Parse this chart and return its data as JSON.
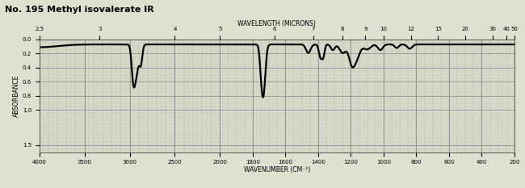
{
  "title": "No. 195 Methyl isovalerate IR",
  "wavelength_label": "WAVELENGTH (MICRONS)",
  "wavenumber_label": "WAVENUMBER (CM⁻¹)",
  "absorbance_label": "ABSORBANCE",
  "top_microns": [
    2.5,
    3,
    4,
    5,
    6,
    7,
    8,
    9,
    10,
    12,
    15,
    20,
    30,
    40,
    50
  ],
  "bottom_wn": [
    4000,
    3500,
    3000,
    2500,
    2000,
    1800,
    1600,
    1400,
    1200,
    1000,
    800,
    600,
    400,
    200
  ],
  "y_ticks": [
    0.0,
    0.2,
    0.4,
    0.6,
    0.8,
    1.0,
    1.5
  ],
  "background_color": "#d8d8c8",
  "grid_major_color": "#888888",
  "grid_minor_color": "#bbbbaa",
  "line_color": "#000000",
  "fig_bg": "#e0e0d0"
}
